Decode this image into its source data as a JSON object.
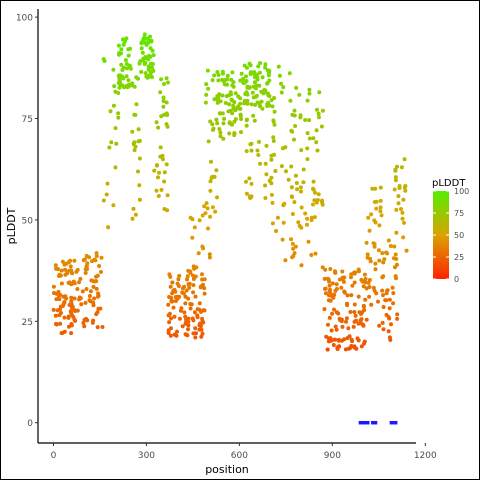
{
  "chart_data": {
    "type": "scatter",
    "xlabel": "position",
    "ylabel": "pLDDT",
    "x_ticks": [
      0,
      300,
      600,
      900,
      1200
    ],
    "y_ticks": [
      0,
      25,
      50,
      75,
      100
    ],
    "xlim": [
      -50,
      1170
    ],
    "ylim": [
      -5,
      102
    ],
    "grid": false,
    "color_scale": {
      "low": "#ff2200",
      "mid": "#d9a400",
      "high": "#55ee00",
      "min": 0,
      "max": 100
    },
    "legend": {
      "title": "pLDDT",
      "ticks": [
        0,
        25,
        50,
        75,
        100
      ],
      "position": "right"
    },
    "point_segments": [
      {
        "x": [
          0,
          85
        ],
        "ylo": 22,
        "yhi": 40,
        "n": 90
      },
      {
        "x": [
          85,
          160
        ],
        "ylo": 23,
        "yhi": 42,
        "n": 55
      },
      {
        "x": [
          160,
          210
        ],
        "ylo": 48,
        "yhi": 90,
        "n": 20
      },
      {
        "x": [
          210,
          250
        ],
        "ylo": 82,
        "yhi": 95,
        "n": 40
      },
      {
        "x": [
          250,
          280
        ],
        "ylo": 50,
        "yhi": 90,
        "n": 25
      },
      {
        "x": [
          280,
          325
        ],
        "ylo": 85,
        "yhi": 96,
        "n": 45
      },
      {
        "x": [
          325,
          370
        ],
        "ylo": 52,
        "yhi": 85,
        "n": 35
      },
      {
        "x": [
          370,
          490
        ],
        "ylo": 21,
        "yhi": 38,
        "n": 110
      },
      {
        "x": [
          440,
          510
        ],
        "ylo": 35,
        "yhi": 55,
        "n": 20
      },
      {
        "x": [
          490,
          530
        ],
        "ylo": 50,
        "yhi": 88,
        "n": 30
      },
      {
        "x": [
          530,
          610
        ],
        "ylo": 70,
        "yhi": 87,
        "n": 70
      },
      {
        "x": [
          610,
          700
        ],
        "ylo": 78,
        "yhi": 89,
        "n": 70
      },
      {
        "x": [
          620,
          720
        ],
        "ylo": 55,
        "yhi": 80,
        "n": 40
      },
      {
        "x": [
          700,
          800
        ],
        "ylo": 40,
        "yhi": 88,
        "n": 60
      },
      {
        "x": [
          800,
          870
        ],
        "ylo": 38,
        "yhi": 86,
        "n": 45
      },
      {
        "x": [
          870,
          1010
        ],
        "ylo": 18,
        "yhi": 38,
        "n": 130
      },
      {
        "x": [
          1010,
          1060
        ],
        "ylo": 22,
        "yhi": 60,
        "n": 40
      },
      {
        "x": [
          1060,
          1110
        ],
        "ylo": 20,
        "yhi": 45,
        "n": 40
      },
      {
        "x": [
          1100,
          1140
        ],
        "ylo": 40,
        "yhi": 66,
        "n": 25
      }
    ],
    "bars_at_zero": [
      {
        "x0": 985,
        "x1": 1020
      },
      {
        "x0": 1025,
        "x1": 1045
      },
      {
        "x0": 1085,
        "x1": 1110
      }
    ],
    "bars_color": "#1a1aff"
  }
}
